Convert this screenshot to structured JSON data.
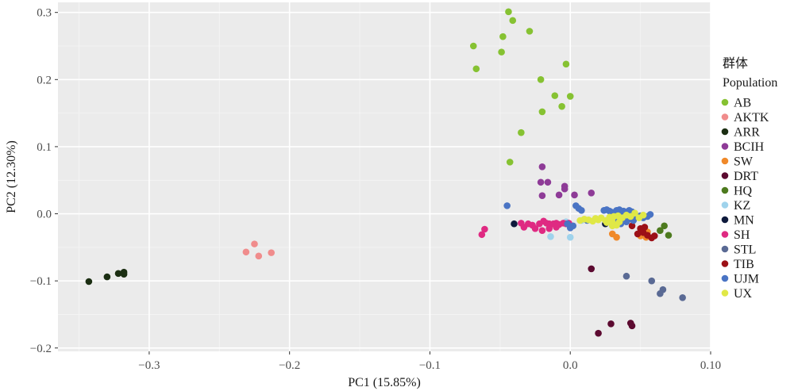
{
  "chart_data": {
    "type": "scatter",
    "xlabel": "PC1 (15.85%)",
    "ylabel": "PC2 (12.30%)",
    "xlim": [
      -0.365,
      0.1
    ],
    "ylim": [
      -0.205,
      0.315
    ],
    "x_ticks": [
      -0.3,
      -0.2,
      -0.1,
      0.0,
      0.1
    ],
    "x_tick_labels": [
      "−0.3",
      "−0.2",
      "−0.1",
      "0.0",
      "0.10"
    ],
    "y_ticks": [
      -0.2,
      -0.1,
      0.0,
      0.1,
      0.2,
      0.3
    ],
    "y_tick_labels": [
      "−0.2",
      "−0.1",
      "0.0",
      "0.1",
      "0.2",
      "0.3"
    ],
    "grid": true,
    "legend": {
      "title_line1": "群体",
      "title_line2": "Population",
      "placement": "right"
    },
    "series": [
      {
        "name": "AB",
        "color": "#86c232",
        "points": [
          [
            -0.044,
            0.301
          ],
          [
            -0.041,
            0.288
          ],
          [
            -0.048,
            0.264
          ],
          [
            -0.029,
            0.272
          ],
          [
            -0.069,
            0.25
          ],
          [
            -0.049,
            0.241
          ],
          [
            -0.067,
            0.216
          ],
          [
            -0.003,
            0.223
          ],
          [
            -0.021,
            0.2
          ],
          [
            -0.011,
            0.176
          ],
          [
            0.0,
            0.175
          ],
          [
            -0.006,
            0.16
          ],
          [
            -0.02,
            0.152
          ],
          [
            -0.035,
            0.121
          ],
          [
            -0.043,
            0.077
          ]
        ]
      },
      {
        "name": "AKTK",
        "color": "#f08c8c",
        "points": [
          [
            -0.225,
            -0.045
          ],
          [
            -0.231,
            -0.057
          ],
          [
            -0.222,
            -0.063
          ],
          [
            -0.213,
            -0.058
          ]
        ]
      },
      {
        "name": "ARR",
        "color": "#1b2e12",
        "points": [
          [
            -0.343,
            -0.101
          ],
          [
            -0.33,
            -0.094
          ],
          [
            -0.322,
            -0.089
          ],
          [
            -0.318,
            -0.087
          ],
          [
            -0.318,
            -0.09
          ]
        ]
      },
      {
        "name": "BCIH",
        "color": "#8e3b97",
        "points": [
          [
            -0.02,
            0.07
          ],
          [
            -0.021,
            0.047
          ],
          [
            -0.016,
            0.047
          ],
          [
            -0.004,
            0.041
          ],
          [
            -0.004,
            0.037
          ],
          [
            0.015,
            0.031
          ],
          [
            -0.02,
            0.027
          ],
          [
            -0.008,
            0.028
          ],
          [
            0.003,
            0.028
          ]
        ]
      },
      {
        "name": "SW",
        "color": "#f0892a",
        "points": [
          [
            0.03,
            -0.03
          ],
          [
            0.033,
            -0.035
          ],
          [
            0.05,
            -0.033
          ],
          [
            0.054,
            -0.035
          ],
          [
            0.055,
            -0.027
          ]
        ]
      },
      {
        "name": "DRT",
        "color": "#5c0a30",
        "points": [
          [
            0.015,
            -0.082
          ],
          [
            0.02,
            -0.178
          ],
          [
            0.029,
            -0.164
          ],
          [
            0.043,
            -0.163
          ],
          [
            0.044,
            -0.167
          ]
        ]
      },
      {
        "name": "HQ",
        "color": "#4d7a1e",
        "points": [
          [
            0.064,
            -0.025
          ],
          [
            0.067,
            -0.018
          ],
          [
            0.07,
            -0.032
          ]
        ]
      },
      {
        "name": "KZ",
        "color": "#9fd3ec",
        "points": [
          [
            -0.014,
            -0.034
          ],
          [
            0.0,
            -0.035
          ],
          [
            0.0,
            -0.02
          ],
          [
            -0.003,
            -0.012
          ],
          [
            0.008,
            -0.01
          ]
        ]
      },
      {
        "name": "MN",
        "color": "#0e1a3c",
        "points": [
          [
            -0.04,
            -0.015
          ],
          [
            0.025,
            -0.015
          ]
        ]
      },
      {
        "name": "SH",
        "color": "#df2a82",
        "points": [
          [
            -0.061,
            -0.023
          ],
          [
            -0.063,
            -0.031
          ],
          [
            -0.035,
            -0.014
          ],
          [
            -0.033,
            -0.02
          ],
          [
            -0.03,
            -0.015
          ],
          [
            -0.027,
            -0.017
          ],
          [
            -0.025,
            -0.022
          ],
          [
            -0.022,
            -0.015
          ],
          [
            -0.02,
            -0.025
          ],
          [
            -0.019,
            -0.011
          ],
          [
            -0.017,
            -0.014
          ],
          [
            -0.015,
            -0.015
          ],
          [
            -0.014,
            -0.016
          ],
          [
            -0.012,
            -0.015
          ],
          [
            -0.01,
            -0.014
          ],
          [
            -0.008,
            -0.016
          ],
          [
            -0.005,
            -0.014
          ],
          [
            -0.003,
            -0.015
          ],
          [
            -0.001,
            -0.014
          ],
          [
            -0.015,
            -0.022
          ],
          [
            -0.01,
            -0.02
          ]
        ]
      },
      {
        "name": "STL",
        "color": "#5a6a94",
        "points": [
          [
            0.04,
            -0.093
          ],
          [
            0.058,
            -0.1
          ],
          [
            0.066,
            -0.113
          ],
          [
            0.064,
            -0.119
          ],
          [
            0.08,
            -0.125
          ]
        ]
      },
      {
        "name": "TIB",
        "color": "#9c1017",
        "points": [
          [
            0.044,
            -0.018
          ],
          [
            0.05,
            -0.022
          ],
          [
            0.052,
            -0.028
          ],
          [
            0.055,
            -0.032
          ],
          [
            0.058,
            -0.036
          ],
          [
            0.06,
            -0.033
          ],
          [
            0.048,
            -0.03
          ],
          [
            0.053,
            -0.02
          ]
        ]
      },
      {
        "name": "UJM",
        "color": "#4a74c4",
        "points": [
          [
            -0.045,
            0.012
          ],
          [
            0.004,
            0.012
          ],
          [
            0.006,
            0.008
          ],
          [
            0.008,
            0.005
          ],
          [
            0.024,
            0.005
          ],
          [
            0.026,
            0.006
          ],
          [
            0.028,
            0.004
          ],
          [
            0.03,
            0.002
          ],
          [
            0.033,
            0.005
          ],
          [
            0.035,
            0.006
          ],
          [
            0.036,
            0.003
          ],
          [
            0.038,
            0.004
          ],
          [
            0.04,
            0.002
          ],
          [
            0.042,
            0.005
          ],
          [
            0.044,
            0.003
          ],
          [
            0.046,
            0.0
          ],
          [
            0.048,
            -0.005
          ],
          [
            0.05,
            -0.003
          ],
          [
            0.052,
            -0.006
          ],
          [
            0.055,
            -0.004
          ],
          [
            0.057,
            -0.001
          ],
          [
            0.034,
            -0.008
          ],
          [
            0.038,
            -0.01
          ],
          [
            0.04,
            -0.012
          ],
          [
            0.042,
            -0.008
          ],
          [
            0.045,
            -0.01
          ],
          [
            0.03,
            -0.015
          ],
          [
            0.036,
            -0.015
          ],
          [
            0.0,
            -0.021
          ],
          [
            -0.002,
            -0.015
          ],
          [
            0.002,
            -0.018
          ],
          [
            0.012,
            -0.01
          ]
        ]
      },
      {
        "name": "UX",
        "color": "#e0e846",
        "points": [
          [
            0.007,
            -0.01
          ],
          [
            0.01,
            -0.008
          ],
          [
            0.013,
            -0.009
          ],
          [
            0.016,
            -0.011
          ],
          [
            0.018,
            -0.007
          ],
          [
            0.02,
            -0.009
          ],
          [
            0.022,
            -0.006
          ],
          [
            0.025,
            -0.01
          ],
          [
            0.028,
            -0.005
          ],
          [
            0.031,
            -0.004
          ],
          [
            0.034,
            -0.003
          ],
          [
            0.037,
            -0.006
          ],
          [
            0.04,
            -0.002
          ],
          [
            0.043,
            -0.004
          ],
          [
            0.046,
            0.001
          ],
          [
            0.049,
            -0.006
          ],
          [
            0.052,
            -0.002
          ],
          [
            0.026,
            -0.013
          ],
          [
            0.03,
            -0.012
          ],
          [
            0.035,
            -0.012
          ],
          [
            0.03,
            -0.018
          ],
          [
            0.033,
            -0.017
          ]
        ]
      }
    ]
  }
}
